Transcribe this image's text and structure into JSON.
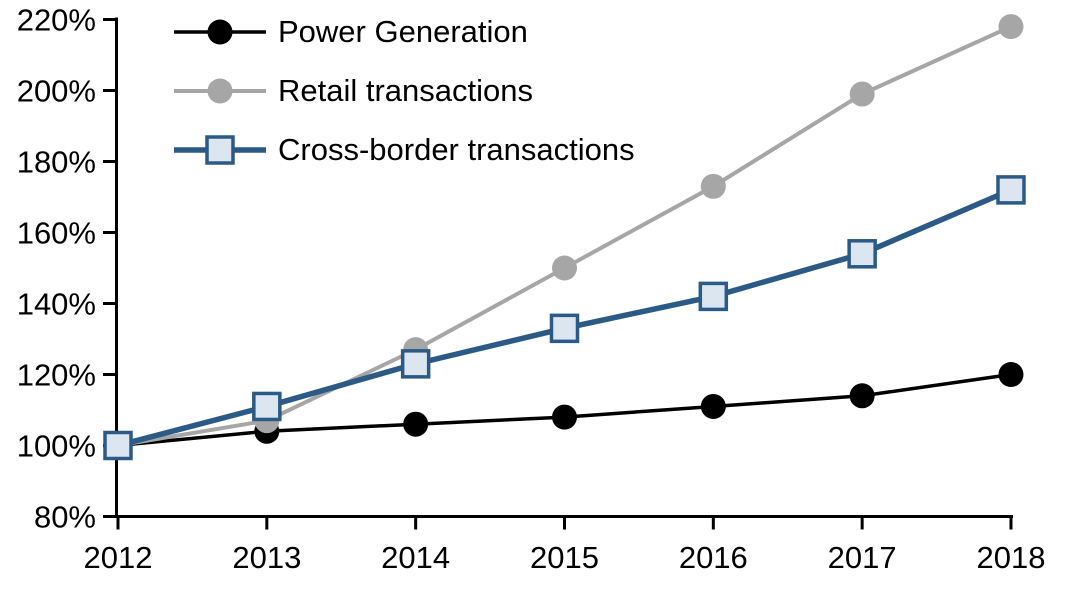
{
  "chart_data": {
    "type": "line",
    "title": "",
    "xlabel": "",
    "ylabel": "",
    "categories": [
      "2012",
      "2013",
      "2014",
      "2015",
      "2016",
      "2017",
      "2018"
    ],
    "series": [
      {
        "name": "Power Generation",
        "marker": "circle",
        "line_color": "#000000",
        "marker_fill": "#000000",
        "marker_stroke": "#000000",
        "line_width": 3.5,
        "values": [
          100,
          104,
          106,
          108,
          111,
          114,
          120
        ]
      },
      {
        "name": "Retail transactions",
        "marker": "circle",
        "line_color": "#a6a6a6",
        "marker_fill": "#a6a6a6",
        "marker_stroke": "#a6a6a6",
        "line_width": 4,
        "values": [
          100,
          107,
          127,
          150,
          173,
          199,
          218
        ]
      },
      {
        "name": "Cross-border transactions",
        "marker": "square",
        "line_color": "#2a5a85",
        "marker_fill": "#dce6f1",
        "marker_stroke": "#2a5a85",
        "line_width": 5.5,
        "values": [
          100,
          111,
          123,
          133,
          142,
          154,
          172
        ]
      }
    ],
    "ylim": [
      80,
      220
    ],
    "ytick_step": 20,
    "ytick_labels": [
      "80%",
      "100%",
      "120%",
      "140%",
      "160%",
      "180%",
      "200%",
      "220%"
    ],
    "unit": "%",
    "grid": false,
    "legend_position": "top-left",
    "axis_color": "#000000"
  }
}
